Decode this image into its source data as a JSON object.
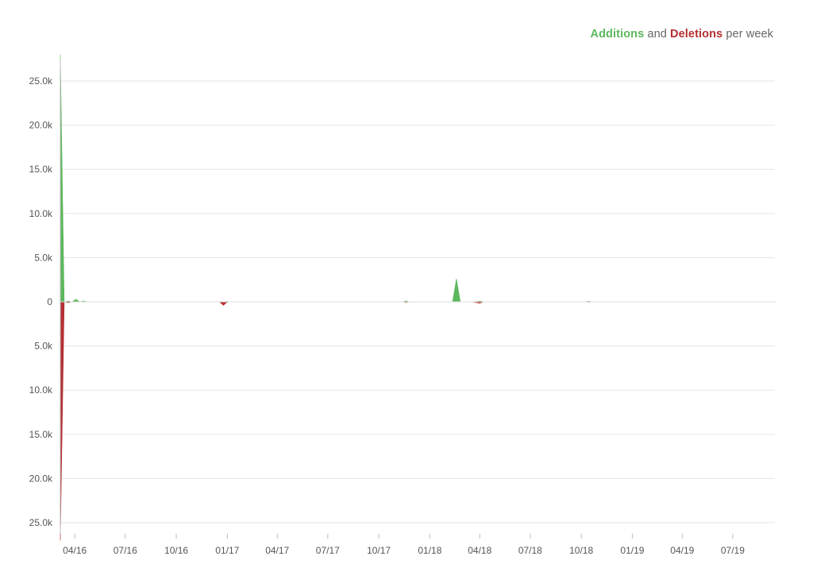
{
  "legend": {
    "additions_label": "Additions",
    "connector": "and",
    "deletions_label": "Deletions",
    "suffix": "per week"
  },
  "colors": {
    "additions": "#5cb85c",
    "deletions": "#b52f32",
    "grid": "#e5e5e5",
    "axis": "#bbbbbb",
    "text": "#666666"
  },
  "chart_data": {
    "type": "area",
    "title": "",
    "xlabel": "",
    "ylabel": "",
    "ylim": [
      -27000,
      28000
    ],
    "y_tick_values": [
      25000,
      20000,
      15000,
      10000,
      5000,
      0,
      -5000,
      -10000,
      -15000,
      -20000,
      -25000
    ],
    "y_tick_labels": [
      "25.0k",
      "20.0k",
      "15.0k",
      "10.0k",
      "5.0k",
      "0",
      "5.0k",
      "10.0k",
      "15.0k",
      "20.0k",
      "25.0k"
    ],
    "xlim": [
      "2016-03-06",
      "2019-09-15"
    ],
    "x_tick_values": [
      "2016-04-01",
      "2016-07-01",
      "2016-10-01",
      "2017-01-01",
      "2017-04-01",
      "2017-07-01",
      "2017-10-01",
      "2018-01-01",
      "2018-04-01",
      "2018-07-01",
      "2018-10-01",
      "2019-01-01",
      "2019-04-01",
      "2019-07-01"
    ],
    "x_tick_labels": [
      "04/16",
      "07/16",
      "10/16",
      "01/17",
      "04/17",
      "07/17",
      "10/17",
      "01/18",
      "04/18",
      "07/18",
      "10/18",
      "01/19",
      "04/19",
      "07/19"
    ],
    "grid": true,
    "legend_position": "top-right",
    "series": [
      {
        "name": "Additions",
        "color": "#5cb85c",
        "points": [
          [
            "2016-03-06",
            28000
          ],
          [
            "2016-03-13",
            0
          ],
          [
            "2016-03-20",
            100
          ],
          [
            "2016-03-27",
            0
          ],
          [
            "2016-04-03",
            300
          ],
          [
            "2016-04-10",
            0
          ],
          [
            "2016-04-17",
            100
          ],
          [
            "2016-04-24",
            0
          ],
          [
            "2016-12-25",
            0
          ],
          [
            "2017-01-01",
            50
          ],
          [
            "2017-01-08",
            0
          ],
          [
            "2017-11-12",
            0
          ],
          [
            "2017-11-19",
            100
          ],
          [
            "2017-11-26",
            0
          ],
          [
            "2018-02-11",
            0
          ],
          [
            "2018-02-18",
            2600
          ],
          [
            "2018-02-25",
            0
          ],
          [
            "2018-03-25",
            0
          ],
          [
            "2018-04-01",
            100
          ],
          [
            "2018-04-08",
            0
          ],
          [
            "2018-10-07",
            0
          ],
          [
            "2018-10-14",
            60
          ],
          [
            "2018-10-21",
            0
          ],
          [
            "2019-09-15",
            0
          ]
        ]
      },
      {
        "name": "Deletions",
        "color": "#b52f32",
        "points": [
          [
            "2016-03-06",
            27000
          ],
          [
            "2016-03-13",
            0
          ],
          [
            "2016-03-20",
            100
          ],
          [
            "2016-03-27",
            0
          ],
          [
            "2016-12-18",
            0
          ],
          [
            "2016-12-25",
            400
          ],
          [
            "2017-01-01",
            0
          ],
          [
            "2017-11-12",
            0
          ],
          [
            "2017-11-19",
            60
          ],
          [
            "2017-11-26",
            0
          ],
          [
            "2018-03-18",
            0
          ],
          [
            "2018-03-25",
            80
          ],
          [
            "2018-04-01",
            150
          ],
          [
            "2018-04-08",
            0
          ],
          [
            "2018-10-07",
            0
          ],
          [
            "2018-10-14",
            40
          ],
          [
            "2018-10-21",
            0
          ],
          [
            "2019-09-15",
            0
          ]
        ]
      }
    ]
  }
}
